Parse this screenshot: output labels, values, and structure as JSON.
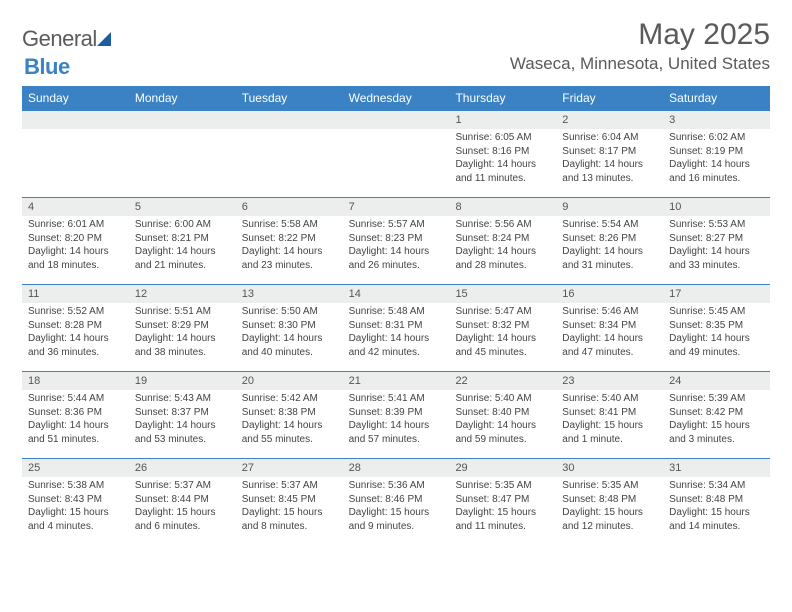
{
  "brand": {
    "part1": "General",
    "part2": "Blue"
  },
  "title": "May 2025",
  "location": "Waseca, Minnesota, United States",
  "colors": {
    "header_bg": "#3b82c4",
    "header_text": "#ffffff",
    "daynum_bg": "#eceded",
    "border": "#3b82c4",
    "text": "#444444",
    "title_text": "#5a5a5a"
  },
  "typography": {
    "title_fontsize": 30,
    "location_fontsize": 17,
    "dayheader_fontsize": 12,
    "daynum_fontsize": 11,
    "body_fontsize": 10
  },
  "day_names": [
    "Sunday",
    "Monday",
    "Tuesday",
    "Wednesday",
    "Thursday",
    "Friday",
    "Saturday"
  ],
  "weeks": [
    [
      {
        "num": "",
        "sunrise": "",
        "sunset": "",
        "daylight": ""
      },
      {
        "num": "",
        "sunrise": "",
        "sunset": "",
        "daylight": ""
      },
      {
        "num": "",
        "sunrise": "",
        "sunset": "",
        "daylight": ""
      },
      {
        "num": "",
        "sunrise": "",
        "sunset": "",
        "daylight": ""
      },
      {
        "num": "1",
        "sunrise": "Sunrise: 6:05 AM",
        "sunset": "Sunset: 8:16 PM",
        "daylight": "Daylight: 14 hours and 11 minutes."
      },
      {
        "num": "2",
        "sunrise": "Sunrise: 6:04 AM",
        "sunset": "Sunset: 8:17 PM",
        "daylight": "Daylight: 14 hours and 13 minutes."
      },
      {
        "num": "3",
        "sunrise": "Sunrise: 6:02 AM",
        "sunset": "Sunset: 8:19 PM",
        "daylight": "Daylight: 14 hours and 16 minutes."
      }
    ],
    [
      {
        "num": "4",
        "sunrise": "Sunrise: 6:01 AM",
        "sunset": "Sunset: 8:20 PM",
        "daylight": "Daylight: 14 hours and 18 minutes."
      },
      {
        "num": "5",
        "sunrise": "Sunrise: 6:00 AM",
        "sunset": "Sunset: 8:21 PM",
        "daylight": "Daylight: 14 hours and 21 minutes."
      },
      {
        "num": "6",
        "sunrise": "Sunrise: 5:58 AM",
        "sunset": "Sunset: 8:22 PM",
        "daylight": "Daylight: 14 hours and 23 minutes."
      },
      {
        "num": "7",
        "sunrise": "Sunrise: 5:57 AM",
        "sunset": "Sunset: 8:23 PM",
        "daylight": "Daylight: 14 hours and 26 minutes."
      },
      {
        "num": "8",
        "sunrise": "Sunrise: 5:56 AM",
        "sunset": "Sunset: 8:24 PM",
        "daylight": "Daylight: 14 hours and 28 minutes."
      },
      {
        "num": "9",
        "sunrise": "Sunrise: 5:54 AM",
        "sunset": "Sunset: 8:26 PM",
        "daylight": "Daylight: 14 hours and 31 minutes."
      },
      {
        "num": "10",
        "sunrise": "Sunrise: 5:53 AM",
        "sunset": "Sunset: 8:27 PM",
        "daylight": "Daylight: 14 hours and 33 minutes."
      }
    ],
    [
      {
        "num": "11",
        "sunrise": "Sunrise: 5:52 AM",
        "sunset": "Sunset: 8:28 PM",
        "daylight": "Daylight: 14 hours and 36 minutes."
      },
      {
        "num": "12",
        "sunrise": "Sunrise: 5:51 AM",
        "sunset": "Sunset: 8:29 PM",
        "daylight": "Daylight: 14 hours and 38 minutes."
      },
      {
        "num": "13",
        "sunrise": "Sunrise: 5:50 AM",
        "sunset": "Sunset: 8:30 PM",
        "daylight": "Daylight: 14 hours and 40 minutes."
      },
      {
        "num": "14",
        "sunrise": "Sunrise: 5:48 AM",
        "sunset": "Sunset: 8:31 PM",
        "daylight": "Daylight: 14 hours and 42 minutes."
      },
      {
        "num": "15",
        "sunrise": "Sunrise: 5:47 AM",
        "sunset": "Sunset: 8:32 PM",
        "daylight": "Daylight: 14 hours and 45 minutes."
      },
      {
        "num": "16",
        "sunrise": "Sunrise: 5:46 AM",
        "sunset": "Sunset: 8:34 PM",
        "daylight": "Daylight: 14 hours and 47 minutes."
      },
      {
        "num": "17",
        "sunrise": "Sunrise: 5:45 AM",
        "sunset": "Sunset: 8:35 PM",
        "daylight": "Daylight: 14 hours and 49 minutes."
      }
    ],
    [
      {
        "num": "18",
        "sunrise": "Sunrise: 5:44 AM",
        "sunset": "Sunset: 8:36 PM",
        "daylight": "Daylight: 14 hours and 51 minutes."
      },
      {
        "num": "19",
        "sunrise": "Sunrise: 5:43 AM",
        "sunset": "Sunset: 8:37 PM",
        "daylight": "Daylight: 14 hours and 53 minutes."
      },
      {
        "num": "20",
        "sunrise": "Sunrise: 5:42 AM",
        "sunset": "Sunset: 8:38 PM",
        "daylight": "Daylight: 14 hours and 55 minutes."
      },
      {
        "num": "21",
        "sunrise": "Sunrise: 5:41 AM",
        "sunset": "Sunset: 8:39 PM",
        "daylight": "Daylight: 14 hours and 57 minutes."
      },
      {
        "num": "22",
        "sunrise": "Sunrise: 5:40 AM",
        "sunset": "Sunset: 8:40 PM",
        "daylight": "Daylight: 14 hours and 59 minutes."
      },
      {
        "num": "23",
        "sunrise": "Sunrise: 5:40 AM",
        "sunset": "Sunset: 8:41 PM",
        "daylight": "Daylight: 15 hours and 1 minute."
      },
      {
        "num": "24",
        "sunrise": "Sunrise: 5:39 AM",
        "sunset": "Sunset: 8:42 PM",
        "daylight": "Daylight: 15 hours and 3 minutes."
      }
    ],
    [
      {
        "num": "25",
        "sunrise": "Sunrise: 5:38 AM",
        "sunset": "Sunset: 8:43 PM",
        "daylight": "Daylight: 15 hours and 4 minutes."
      },
      {
        "num": "26",
        "sunrise": "Sunrise: 5:37 AM",
        "sunset": "Sunset: 8:44 PM",
        "daylight": "Daylight: 15 hours and 6 minutes."
      },
      {
        "num": "27",
        "sunrise": "Sunrise: 5:37 AM",
        "sunset": "Sunset: 8:45 PM",
        "daylight": "Daylight: 15 hours and 8 minutes."
      },
      {
        "num": "28",
        "sunrise": "Sunrise: 5:36 AM",
        "sunset": "Sunset: 8:46 PM",
        "daylight": "Daylight: 15 hours and 9 minutes."
      },
      {
        "num": "29",
        "sunrise": "Sunrise: 5:35 AM",
        "sunset": "Sunset: 8:47 PM",
        "daylight": "Daylight: 15 hours and 11 minutes."
      },
      {
        "num": "30",
        "sunrise": "Sunrise: 5:35 AM",
        "sunset": "Sunset: 8:48 PM",
        "daylight": "Daylight: 15 hours and 12 minutes."
      },
      {
        "num": "31",
        "sunrise": "Sunrise: 5:34 AM",
        "sunset": "Sunset: 8:48 PM",
        "daylight": "Daylight: 15 hours and 14 minutes."
      }
    ]
  ]
}
